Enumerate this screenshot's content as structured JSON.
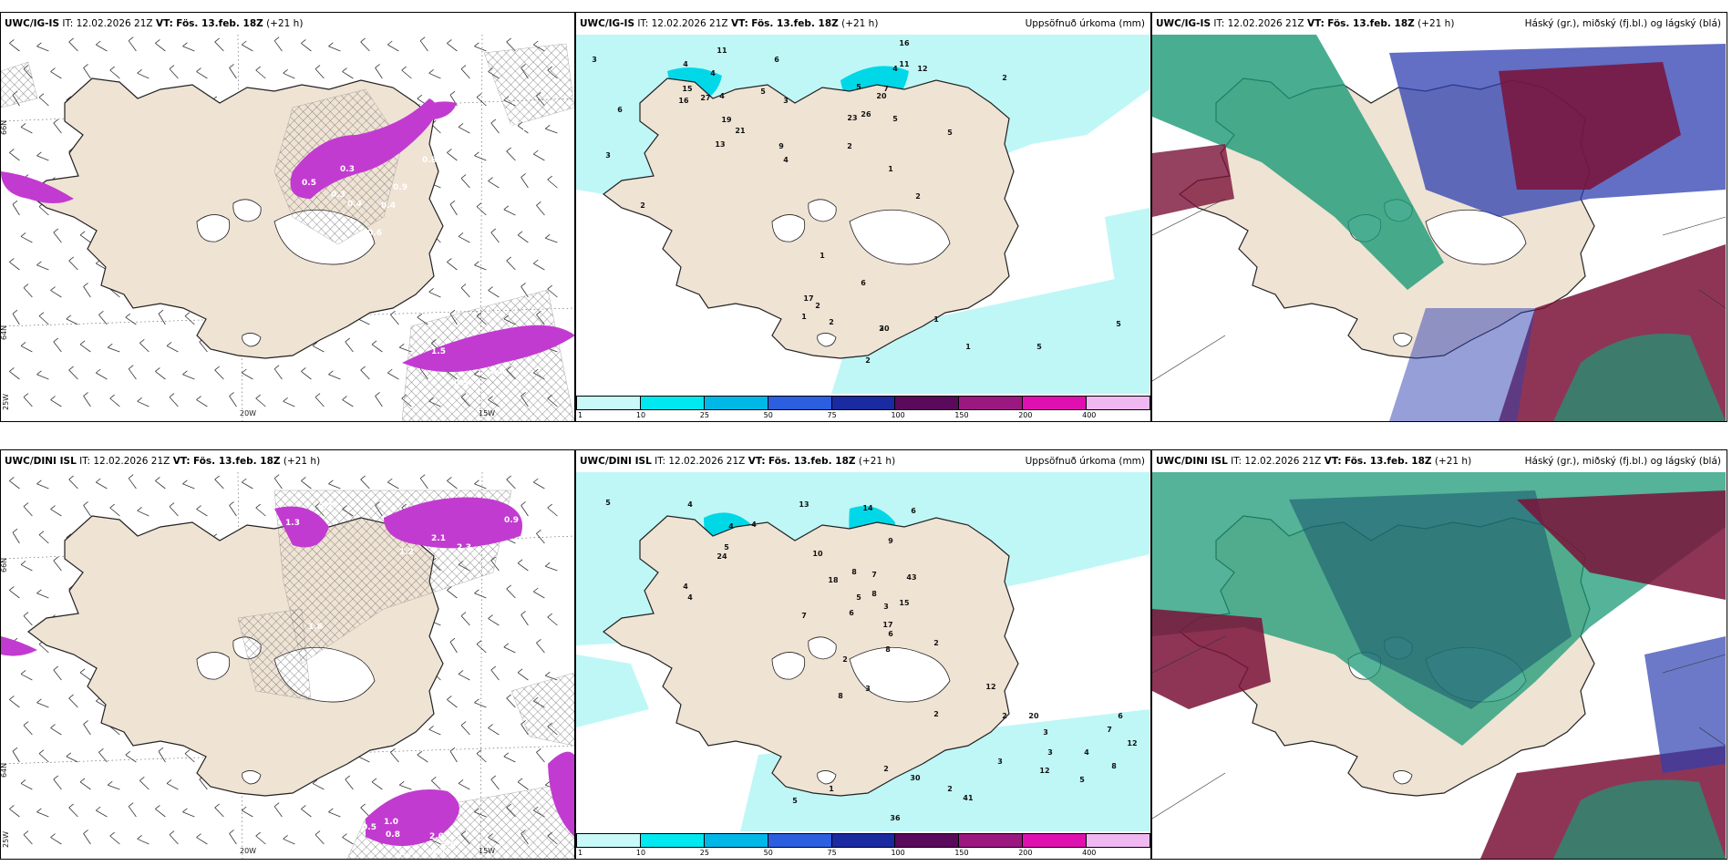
{
  "colors": {
    "land": "#efe3d4",
    "precip_light": "#bff7f7",
    "precip_mid": "#00d8e8",
    "ice_magenta": "#c23bd0",
    "high": "#7a1238",
    "mid": "#2d3fb0",
    "low": "#1b9a76"
  },
  "panels": [
    {
      "id": "ig-wind",
      "model": "UWC/IG-IS",
      "it": " IT: 12.02.2026 21Z ",
      "vt_label": "VT:",
      "vt": "Fös. 13.feb. 18Z",
      "lead": " (+21 h)",
      "right": "",
      "axis_labels": [
        "66N",
        "64N",
        "25W",
        "20W",
        "15W"
      ],
      "values": [
        "0.3",
        "0.5",
        "0.4",
        "0.8",
        "2.9",
        "1.9",
        "0.9",
        "0.3",
        "0.4",
        "1.7",
        "0.6",
        "1.5",
        "0.5",
        "0.6"
      ]
    },
    {
      "id": "ig-precip",
      "model": "UWC/IG-IS",
      "it": " IT: 12.02.2026 21Z ",
      "vt_label": "VT:",
      "vt": "Fös. 13.feb. 18Z",
      "lead": " (+21 h)",
      "right": "Uppsöfnuð úrkoma (mm)",
      "values": [
        "3",
        "11",
        "4",
        "4",
        "6",
        "16",
        "11",
        "5",
        "4",
        "3",
        "12",
        "4",
        "15",
        "6",
        "5",
        "20",
        "7",
        "5",
        "16",
        "27",
        "19",
        "21",
        "26",
        "23",
        "13",
        "3",
        "9",
        "2",
        "5",
        "1",
        "4",
        "2",
        "2",
        "1",
        "2",
        "17",
        "2",
        "6",
        "1",
        "1",
        "2",
        "1",
        "2",
        "30",
        "5",
        "5",
        "2"
      ]
    },
    {
      "id": "ig-cloud",
      "model": "UWC/IG-IS",
      "it": " IT: 12.02.2026 21Z ",
      "vt_label": "VT:",
      "vt": "Fös. 13.feb. 18Z",
      "lead": " (+21 h)",
      "right": "Háský (gr.), miðský (fj.bl.) og lágský (blá)",
      "values": []
    },
    {
      "id": "dini-wind",
      "model": "UWC/DINI ISL",
      "it": " IT: 12.02.2026 21Z ",
      "vt_label": "VT:",
      "vt": "Fös. 13.feb. 18Z",
      "lead": " (+21 h)",
      "right": "",
      "axis_labels": [
        "66N",
        "64N",
        "25W",
        "20W",
        "15W"
      ],
      "values": [
        "1.3",
        "2.1",
        "0.7",
        "0.2",
        "1.2",
        "2.0",
        "2.3",
        "1.6",
        "0.9",
        "0.8",
        "2.6",
        "1.0",
        "2.0",
        "-5.2",
        "0.5",
        "2.5"
      ]
    },
    {
      "id": "dini-precip",
      "model": "UWC/DINI ISL",
      "it": " IT: 12.02.2026 21Z ",
      "vt_label": "VT:",
      "vt": "Fös. 13.feb. 18Z",
      "lead": " (+21 h)",
      "right": "Uppsöfnuð úrkoma (mm)",
      "values": [
        "5",
        "4",
        "13",
        "4",
        "4",
        "14",
        "6",
        "5",
        "24",
        "10",
        "8",
        "8",
        "18",
        "7",
        "9",
        "43",
        "5",
        "4",
        "4",
        "15",
        "6",
        "2",
        "2",
        "3",
        "6",
        "17",
        "7",
        "3",
        "8",
        "8",
        "2",
        "12",
        "5",
        "1",
        "2",
        "2",
        "20",
        "3",
        "3",
        "3",
        "5",
        "6",
        "7",
        "8",
        "12",
        "41",
        "30",
        "36",
        "2",
        "12",
        "4"
      ]
    },
    {
      "id": "dini-cloud",
      "model": "UWC/DINI ISL",
      "it": " IT: 12.02.2026 21Z ",
      "vt_label": "VT:",
      "vt": "Fös. 13.feb. 18Z",
      "lead": " (+21 h)",
      "right": "Háský (gr.), miðský (fj.bl.) og lágský (blá)",
      "values": []
    }
  ],
  "colorbar": {
    "ticks": [
      "1",
      "10",
      "25",
      "50",
      "75",
      "100",
      "150",
      "200",
      "400"
    ],
    "colors": [
      "#c8f8f8",
      "#00e8f0",
      "#00b8e8",
      "#2b5fe0",
      "#1a2aa0",
      "#5a0a5a",
      "#9a1880",
      "#e010b0",
      "#f0b8f0"
    ]
  }
}
